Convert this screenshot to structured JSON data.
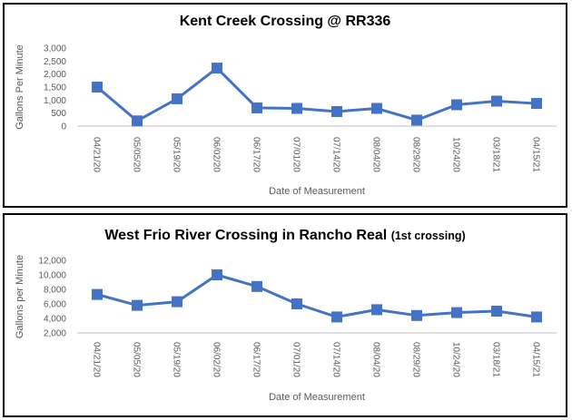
{
  "chart_data": [
    {
      "type": "line",
      "title": "Kent Creek Crossing @ RR336",
      "subtitle": "",
      "xlabel": "Date of Measurement",
      "ylabel": "Gallons Per Minute",
      "categories": [
        "04/21/20",
        "05/05/20",
        "05/19/20",
        "06/02/20",
        "06/17/20",
        "07/01/20",
        "07/14/20",
        "08/04/20",
        "08/29/20",
        "10/24/20",
        "03/18/21",
        "04/15/21"
      ],
      "series": [
        {
          "values": [
            1500,
            200,
            1050,
            2230,
            700,
            680,
            560,
            680,
            230,
            820,
            960,
            870
          ]
        }
      ],
      "ylim": [
        0,
        3000
      ],
      "yticks": [
        0,
        500,
        1000,
        1500,
        2000,
        2500,
        3000
      ],
      "ytick_labels": [
        "0",
        "500",
        "1,000",
        "1,500",
        "2,000",
        "2,500",
        "3,000"
      ],
      "color": "#4472C4",
      "grid": false,
      "legend": "none"
    },
    {
      "type": "line",
      "title": "West Frio River Crossing in Rancho Real",
      "subtitle": "(1st crossing)",
      "xlabel": "Date of Measurement",
      "ylabel": "Gallons per Minute",
      "categories": [
        "04/21/20",
        "05/05/20",
        "05/19/20",
        "06/02/20",
        "06/17/20",
        "07/01/20",
        "07/14/20",
        "08/04/20",
        "08/29/20",
        "10/24/20",
        "03/18/21",
        "04/15/21"
      ],
      "series": [
        {
          "values": [
            7300,
            5800,
            6300,
            10000,
            8400,
            6000,
            4200,
            5200,
            4400,
            4800,
            5000,
            4200
          ]
        }
      ],
      "ylim": [
        2000,
        12000
      ],
      "yticks": [
        2000,
        4000,
        6000,
        8000,
        10000,
        12000
      ],
      "ytick_labels": [
        "2,000",
        "4,000",
        "6,000",
        "8,000",
        "10,000",
        "12,000"
      ],
      "color": "#4472C4",
      "grid": false,
      "legend": "none"
    }
  ]
}
